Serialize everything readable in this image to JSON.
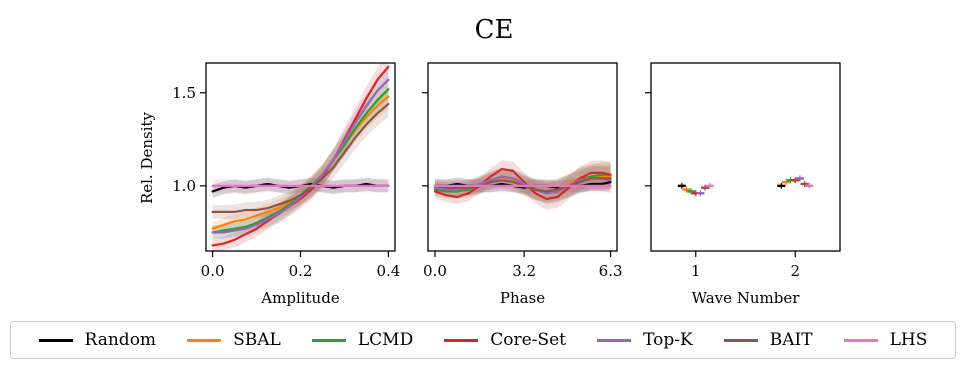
{
  "figure_title": "CE",
  "y_axis_label": "Rel. Density",
  "colors": {
    "Random": "#000000",
    "SBAL": "#ff7f0e",
    "LCMD": "#2ca02c",
    "Core-Set": "#d62728",
    "Top-K": "#9467bd",
    "BAIT": "#8c564b",
    "LHS": "#e377c2"
  },
  "legend": [
    "Random",
    "SBAL",
    "LCMD",
    "Core-Set",
    "Top-K",
    "BAIT",
    "LHS"
  ],
  "chart_data": [
    {
      "type": "line",
      "xlabel": "Amplitude",
      "ylabel": "Rel. Density",
      "xlim": [
        -0.015,
        0.415
      ],
      "ylim": [
        0.65,
        1.66
      ],
      "xticks": [
        0.0,
        0.2,
        0.4
      ],
      "xtick_labels": [
        "0.0",
        "0.2",
        "0.4"
      ],
      "yticks": [
        1.0,
        1.5
      ],
      "ytick_labels": [
        "1.0",
        "1.5"
      ],
      "x": [
        0.0,
        0.025,
        0.05,
        0.075,
        0.1,
        0.125,
        0.15,
        0.175,
        0.2,
        0.225,
        0.25,
        0.275,
        0.3,
        0.325,
        0.35,
        0.375,
        0.4
      ],
      "series": [
        {
          "name": "Random",
          "values": [
            0.97,
            0.99,
            1.0,
            0.99,
            1.0,
            1.01,
            1.0,
            0.99,
            1.0,
            1.01,
            1.0,
            0.99,
            1.0,
            1.0,
            1.01,
            1.0,
            1.0
          ]
        },
        {
          "name": "SBAL",
          "values": [
            0.77,
            0.79,
            0.81,
            0.82,
            0.84,
            0.86,
            0.88,
            0.91,
            0.95,
            1.0,
            1.06,
            1.14,
            1.22,
            1.3,
            1.37,
            1.43,
            1.48
          ]
        },
        {
          "name": "LCMD",
          "values": [
            0.75,
            0.76,
            0.77,
            0.78,
            0.8,
            0.83,
            0.86,
            0.9,
            0.95,
            1.0,
            1.06,
            1.14,
            1.22,
            1.31,
            1.39,
            1.46,
            1.52
          ]
        },
        {
          "name": "Core-Set",
          "values": [
            0.68,
            0.69,
            0.71,
            0.74,
            0.77,
            0.81,
            0.85,
            0.89,
            0.93,
            0.98,
            1.05,
            1.14,
            1.25,
            1.36,
            1.47,
            1.57,
            1.64
          ]
        },
        {
          "name": "Top-K",
          "values": [
            0.75,
            0.75,
            0.76,
            0.77,
            0.79,
            0.82,
            0.85,
            0.89,
            0.94,
            0.99,
            1.06,
            1.14,
            1.24,
            1.34,
            1.43,
            1.51,
            1.57
          ]
        },
        {
          "name": "BAIT",
          "values": [
            0.86,
            0.86,
            0.86,
            0.87,
            0.87,
            0.88,
            0.9,
            0.92,
            0.95,
            0.99,
            1.04,
            1.1,
            1.18,
            1.26,
            1.33,
            1.39,
            1.44
          ]
        },
        {
          "name": "LHS",
          "values": [
            1.0,
            1.0,
            1.0,
            1.0,
            1.0,
            1.0,
            1.0,
            1.0,
            1.0,
            1.0,
            1.0,
            1.0,
            1.0,
            1.0,
            1.0,
            1.0,
            1.0
          ]
        }
      ]
    },
    {
      "type": "line",
      "xlabel": "Phase",
      "ylabel": "",
      "xlim": [
        -0.25,
        6.53
      ],
      "ylim": [
        0.65,
        1.66
      ],
      "xticks": [
        0.0,
        3.2,
        6.3
      ],
      "xtick_labels": [
        "0.0",
        "3.2",
        "6.3"
      ],
      "yticks": [
        1.0,
        1.5
      ],
      "ytick_labels": [
        "",
        ""
      ],
      "x": [
        0.0,
        0.4,
        0.8,
        1.2,
        1.6,
        2.0,
        2.4,
        2.8,
        3.2,
        3.6,
        4.0,
        4.4,
        4.8,
        5.2,
        5.6,
        6.0,
        6.3
      ],
      "series": [
        {
          "name": "Random",
          "values": [
            1.0,
            1.0,
            1.01,
            1.0,
            1.0,
            1.0,
            1.01,
            1.0,
            0.99,
            1.0,
            1.0,
            0.99,
            1.0,
            1.0,
            1.01,
            1.01,
            1.02
          ]
        },
        {
          "name": "SBAL",
          "values": [
            0.99,
            0.98,
            0.98,
            0.99,
            1.01,
            1.03,
            1.04,
            1.03,
            1.0,
            0.98,
            0.97,
            0.98,
            1.01,
            1.04,
            1.05,
            1.05,
            1.05
          ]
        },
        {
          "name": "LCMD",
          "values": [
            0.98,
            0.97,
            0.97,
            0.98,
            1.0,
            1.03,
            1.05,
            1.04,
            1.01,
            0.98,
            0.96,
            0.97,
            1.0,
            1.03,
            1.05,
            1.06,
            1.06
          ]
        },
        {
          "name": "Core-Set",
          "values": [
            0.97,
            0.95,
            0.94,
            0.96,
            1.0,
            1.05,
            1.09,
            1.08,
            1.02,
            0.96,
            0.93,
            0.94,
            0.99,
            1.04,
            1.07,
            1.07,
            1.06
          ]
        },
        {
          "name": "Top-K",
          "values": [
            0.99,
            0.98,
            0.98,
            0.99,
            1.01,
            1.03,
            1.05,
            1.04,
            1.01,
            0.98,
            0.96,
            0.97,
            1.0,
            1.03,
            1.04,
            1.04,
            1.03
          ]
        },
        {
          "name": "BAIT",
          "values": [
            1.0,
            0.99,
            0.99,
            0.99,
            1.0,
            1.02,
            1.03,
            1.02,
            1.0,
            0.98,
            0.97,
            0.98,
            1.0,
            1.02,
            1.04,
            1.04,
            1.04
          ]
        },
        {
          "name": "LHS",
          "values": [
            1.0,
            1.0,
            1.0,
            1.0,
            1.0,
            1.0,
            1.0,
            1.0,
            1.0,
            1.0,
            1.0,
            1.0,
            1.0,
            1.0,
            1.0,
            1.0,
            1.0
          ]
        }
      ]
    },
    {
      "type": "scatter",
      "xlabel": "Wave Number",
      "ylabel": "",
      "xlim": [
        0.55,
        2.45
      ],
      "ylim": [
        0.65,
        1.66
      ],
      "xticks": [
        1,
        2
      ],
      "xtick_labels": [
        "1",
        "2"
      ],
      "yticks": [
        1.0,
        1.5
      ],
      "ytick_labels": [
        "",
        ""
      ],
      "groups": [
        1,
        2
      ],
      "series": [
        {
          "name": "Random",
          "values": [
            1.0,
            1.0
          ]
        },
        {
          "name": "SBAL",
          "values": [
            0.98,
            1.02
          ]
        },
        {
          "name": "LCMD",
          "values": [
            0.97,
            1.03
          ]
        },
        {
          "name": "Core-Set",
          "values": [
            0.96,
            1.03
          ]
        },
        {
          "name": "Top-K",
          "values": [
            0.96,
            1.04
          ]
        },
        {
          "name": "BAIT",
          "values": [
            0.99,
            1.01
          ]
        },
        {
          "name": "LHS",
          "values": [
            1.0,
            1.0
          ]
        }
      ]
    }
  ]
}
